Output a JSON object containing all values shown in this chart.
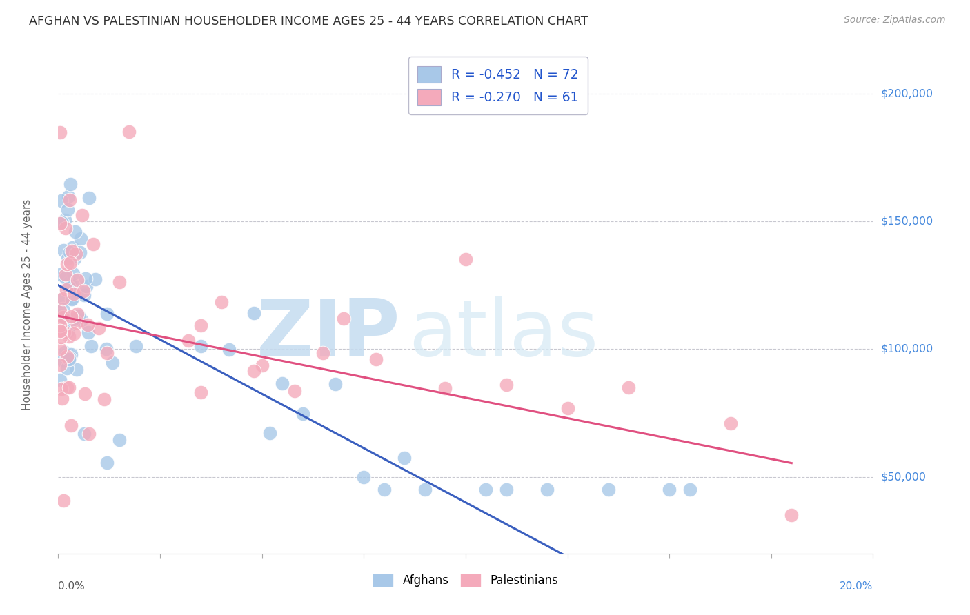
{
  "title": "AFGHAN VS PALESTINIAN HOUSEHOLDER INCOME AGES 25 - 44 YEARS CORRELATION CHART",
  "source": "Source: ZipAtlas.com",
  "ylabel": "Householder Income Ages 25 - 44 years",
  "xlim": [
    0.0,
    20.0
  ],
  "ylim": [
    20000,
    215000
  ],
  "afghan_R": "-0.452",
  "afghan_N": "72",
  "palestinian_R": "-0.270",
  "palestinian_N": "61",
  "afghan_color": "#A8C8E8",
  "palestinian_color": "#F4AABB",
  "afghan_trend_color": "#3A5FBF",
  "palestinian_trend_color": "#E05080",
  "watermark_zip": "ZIP",
  "watermark_atlas": "atlas",
  "background_color": "#FFFFFF",
  "grid_color": "#C8C8D0",
  "legend_edge_color": "#BBBBCC",
  "legend_text_color": "#2255CC",
  "right_label_color": "#4488DD",
  "title_color": "#333333",
  "source_color": "#999999",
  "ylabel_color": "#666666",
  "xlabel_left_color": "#555555",
  "xlabel_right_color": "#4488DD",
  "afghan_trend_intercept": 125000,
  "afghan_trend_slope": -8500,
  "palestinian_trend_intercept": 113000,
  "palestinian_trend_slope": -3200
}
